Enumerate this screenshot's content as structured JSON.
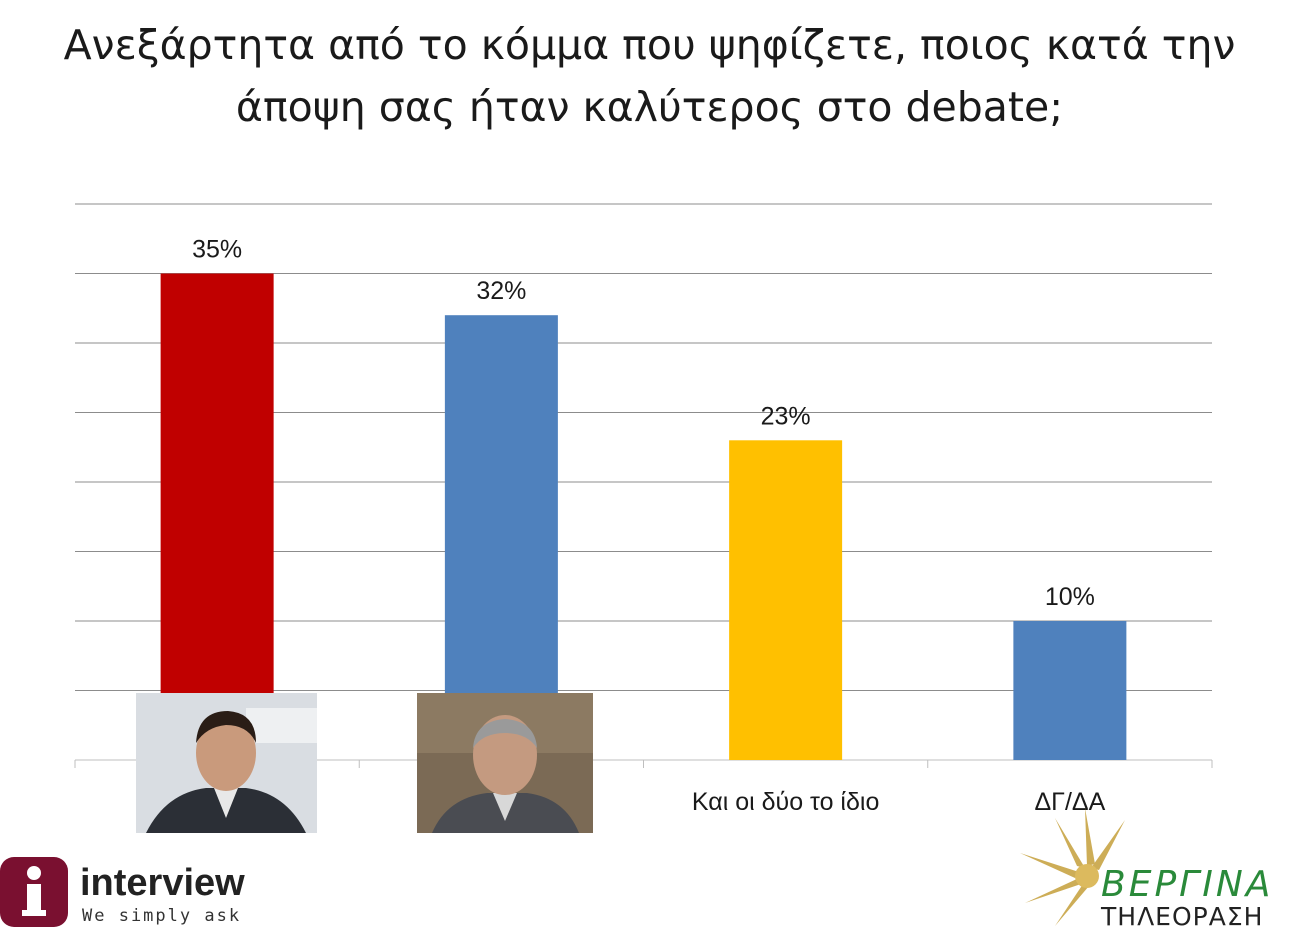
{
  "title": {
    "line1": "Ανεξάρτητα από το κόμμα που ψηφίζετε, ποιος κατά την",
    "line2": "άποψη σας ήταν καλύτερος στο debate;"
  },
  "chart_data": {
    "type": "bar",
    "categories": [
      "",
      "",
      "Και οι δύο το ίδιο",
      "ΔΓ/ΔΑ"
    ],
    "values": [
      35,
      32,
      23,
      10
    ],
    "value_labels": [
      "35%",
      "32%",
      "23%",
      "10%"
    ],
    "bar_colors": [
      "#c00000",
      "#4f81bd",
      "#ffc000",
      "#4f81bd"
    ],
    "ylim": [
      0,
      40
    ],
    "grid": true,
    "xlabel": "",
    "ylabel": ""
  },
  "category_images": [
    "candidate-1-photo",
    "candidate-2-photo"
  ],
  "logos": {
    "interview": {
      "name": "interview",
      "tagline": "We simply ask",
      "letter": "i",
      "color": "#7a1030"
    },
    "vergina": {
      "name": "ΒΕΡΓΙΝΑ",
      "subtitle": "ΤΗΛΕΟΡΑΣΗ",
      "color": "#2a8a3a"
    }
  }
}
